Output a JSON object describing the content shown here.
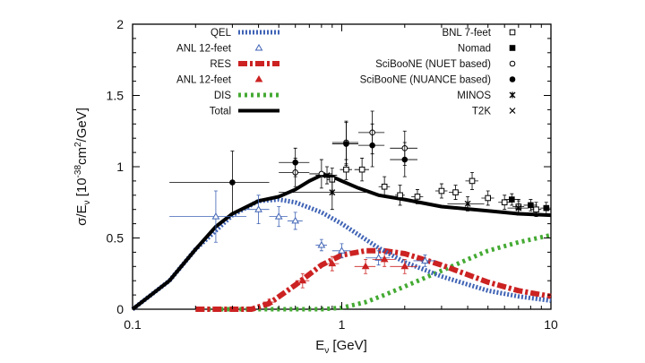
{
  "chart_data": {
    "type": "line",
    "xlabel": "E",
    "xlabel_sub": "ν",
    "xlabel_unit": " [GeV]",
    "ylabel": "σ/E",
    "ylabel_sub": "ν",
    "ylabel_unit_pre": " [10",
    "ylabel_exp1": "-38",
    "ylabel_mid": "cm",
    "ylabel_exp2": "2",
    "ylabel_unit_post": "/GeV]",
    "x_scale": "log",
    "xlim": [
      0.1,
      10
    ],
    "ylim": [
      0,
      2
    ],
    "x_ticks": [
      {
        "value": 0.1,
        "label": "0.1"
      },
      {
        "value": 1,
        "label": "1"
      },
      {
        "value": 10,
        "label": "10"
      }
    ],
    "y_ticks": [
      {
        "value": 0,
        "label": "0"
      },
      {
        "value": 0.5,
        "label": "0.5"
      },
      {
        "value": 1,
        "label": "1"
      },
      {
        "value": 1.5,
        "label": "1.5"
      },
      {
        "value": 2,
        "label": "2"
      }
    ],
    "colors": {
      "qel": "#3f63b5",
      "res": "#cc2222",
      "dis": "#44aa33",
      "total": "#000000",
      "points": "#000000"
    },
    "series": [
      {
        "name": "QEL",
        "style": "qel",
        "x": [
          0.1,
          0.15,
          0.2,
          0.3,
          0.4,
          0.5,
          0.6,
          0.8,
          1,
          1.5,
          2,
          3,
          5,
          7,
          10
        ],
        "y": [
          0,
          0.2,
          0.42,
          0.66,
          0.76,
          0.77,
          0.75,
          0.68,
          0.6,
          0.43,
          0.33,
          0.23,
          0.13,
          0.09,
          0.06
        ]
      },
      {
        "name": "RES",
        "style": "res",
        "x": [
          0.2,
          0.3,
          0.37,
          0.45,
          0.6,
          0.8,
          1,
          1.3,
          1.6,
          2,
          3,
          5,
          7,
          10
        ],
        "y": [
          0,
          0,
          0,
          0.04,
          0.17,
          0.31,
          0.38,
          0.41,
          0.41,
          0.39,
          0.31,
          0.19,
          0.13,
          0.09
        ]
      },
      {
        "name": "DIS",
        "style": "dis",
        "x": [
          0.2,
          0.6,
          0.8,
          1,
          1.3,
          1.6,
          2,
          3,
          4,
          5,
          7,
          10
        ],
        "y": [
          0,
          0,
          0,
          0.01,
          0.05,
          0.1,
          0.16,
          0.27,
          0.35,
          0.41,
          0.47,
          0.52
        ]
      },
      {
        "name": "Total",
        "style": "total",
        "x": [
          0.1,
          0.15,
          0.2,
          0.25,
          0.3,
          0.4,
          0.5,
          0.6,
          0.7,
          0.8,
          0.9,
          1,
          1.2,
          1.5,
          2,
          3,
          5,
          7,
          10
        ],
        "y": [
          0,
          0.2,
          0.42,
          0.58,
          0.67,
          0.76,
          0.79,
          0.84,
          0.9,
          0.94,
          0.93,
          0.9,
          0.85,
          0.8,
          0.77,
          0.72,
          0.69,
          0.67,
          0.66
        ]
      }
    ],
    "point_sets": [
      {
        "name": "ANL 12-feet",
        "marker": "tri-open",
        "points": [
          [
            0.25,
            0.65,
            0.1,
            0.18
          ],
          [
            0.4,
            0.7,
            0.05,
            0.1
          ],
          [
            0.5,
            0.65,
            0.05,
            0.07
          ],
          [
            0.6,
            0.62,
            0.05,
            0.06
          ],
          [
            0.8,
            0.45,
            0.05,
            0.04
          ],
          [
            1,
            0.41,
            0.1,
            0.05
          ],
          [
            1.5,
            0.36,
            0.2,
            0.05
          ],
          [
            2.5,
            0.34,
            0.3,
            0.04
          ]
        ]
      },
      {
        "name": "ANL 12-feet",
        "marker": "tri-filled",
        "points": [
          [
            0.45,
            0.05,
            0.03,
            0.02
          ],
          [
            0.65,
            0.2,
            0.05,
            0.05
          ],
          [
            0.9,
            0.32,
            0.07,
            0.05
          ],
          [
            1.3,
            0.3,
            0.15,
            0.05
          ],
          [
            1.6,
            0.35,
            0.2,
            0.05
          ],
          [
            2,
            0.3,
            0.3,
            0.05
          ]
        ]
      },
      {
        "name": "BNL 7-feet",
        "marker": "sq-open",
        "points": [
          [
            0.9,
            0.91,
            0.05,
            0.08
          ],
          [
            1.05,
            0.98,
            0.07,
            0.07
          ],
          [
            1.25,
            0.98,
            0.1,
            0.08
          ],
          [
            1.6,
            0.86,
            0.1,
            0.07
          ],
          [
            1.9,
            0.8,
            0.1,
            0.07
          ],
          [
            2.3,
            0.79,
            0.15,
            0.05
          ],
          [
            3,
            0.83,
            0.2,
            0.05
          ],
          [
            3.5,
            0.82,
            0.25,
            0.05
          ],
          [
            4.2,
            0.9,
            0.3,
            0.06
          ],
          [
            5,
            0.78,
            0.35,
            0.05
          ],
          [
            6,
            0.75,
            0.4,
            0.05
          ],
          [
            7,
            0.72,
            0.45,
            0.05
          ],
          [
            8.5,
            0.7,
            0.5,
            0.05
          ]
        ]
      },
      {
        "name": "Nomad",
        "marker": "sq-filled",
        "points": [
          [
            6.5,
            0.77,
            0.5,
            0.04
          ],
          [
            8,
            0.73,
            0.6,
            0.04
          ],
          [
            9.5,
            0.71,
            0.6,
            0.04
          ]
        ]
      },
      {
        "name": "SciBooNE (NUET based)",
        "marker": "circ-open",
        "points": [
          [
            0.6,
            0.96,
            0.1,
            0.1
          ],
          [
            0.8,
            0.95,
            0.1,
            0.1
          ],
          [
            1.05,
            1.17,
            0.15,
            0.15
          ],
          [
            1.4,
            1.24,
            0.2,
            0.15
          ],
          [
            2,
            1.13,
            0.3,
            0.12
          ]
        ]
      },
      {
        "name": "SciBooNE (NUANCE based)",
        "marker": "circ-filled",
        "points": [
          [
            0.3,
            0.89,
            0.15,
            0.22
          ],
          [
            0.6,
            1.03,
            0.1,
            0.1
          ],
          [
            1.05,
            1.16,
            0.15,
            0.15
          ],
          [
            1.4,
            1.15,
            0.2,
            0.15
          ],
          [
            2,
            1.05,
            0.3,
            0.12
          ]
        ]
      },
      {
        "name": "MINOS",
        "marker": "star",
        "points": [
          [
            0.9,
            0.82,
            0.4,
            0.12
          ],
          [
            4,
            0.74,
            0.8,
            0.05
          ],
          [
            7,
            0.71,
            0.8,
            0.05
          ]
        ]
      },
      {
        "name": "T2K",
        "marker": "x",
        "points": [
          [
            0.85,
            0.94,
            0.1,
            0.06
          ]
        ]
      }
    ],
    "legend_left": [
      {
        "label": "QEL",
        "style": "qel"
      },
      {
        "label": "ANL 12-feet",
        "style": "tri-open"
      },
      {
        "label": "RES",
        "style": "res"
      },
      {
        "label": "ANL 12-feet",
        "style": "tri-filled"
      },
      {
        "label": "DIS",
        "style": "dis"
      },
      {
        "label": "Total",
        "style": "total"
      }
    ],
    "legend_right": [
      {
        "label": "BNL 7-feet",
        "style": "sq-open"
      },
      {
        "label": "Nomad",
        "style": "sq-filled"
      },
      {
        "label": "SciBooNE (NUET based)",
        "style": "circ-open"
      },
      {
        "label": "SciBooNE (NUANCE based)",
        "style": "circ-filled"
      },
      {
        "label": "MINOS",
        "style": "star"
      },
      {
        "label": "T2K",
        "style": "x"
      }
    ],
    "legend_placement": [
      "top-left",
      "top-right"
    ],
    "grid": false
  }
}
